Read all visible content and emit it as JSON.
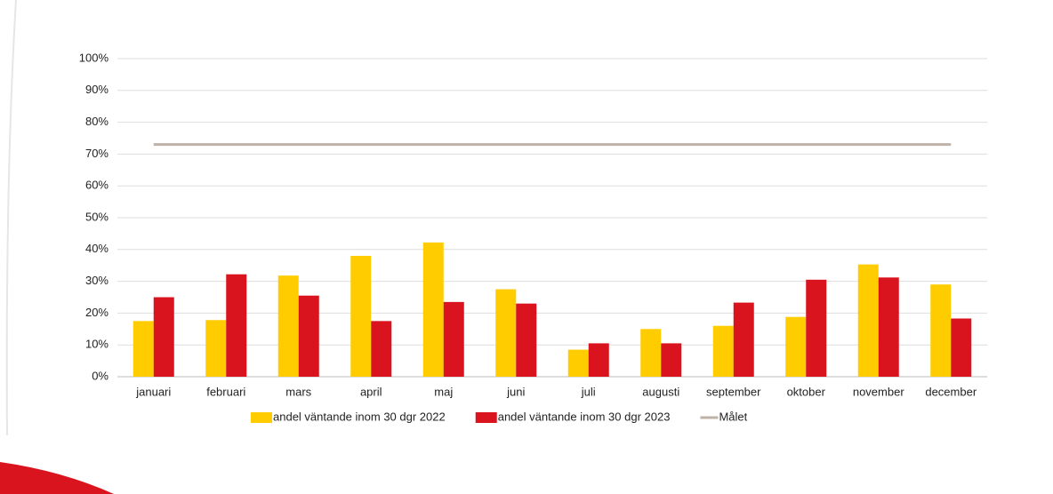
{
  "chart_data": {
    "type": "bar",
    "categories": [
      "januari",
      "februari",
      "mars",
      "april",
      "maj",
      "juni",
      "juli",
      "augusti",
      "september",
      "oktober",
      "november",
      "december"
    ],
    "series": [
      {
        "name": "andel väntande inom 30 dgr 2022",
        "color": "#ffcc00",
        "values": [
          17.5,
          17.8,
          31.8,
          38,
          42.2,
          27.5,
          8.5,
          15,
          16,
          18.8,
          35.3,
          29
        ]
      },
      {
        "name": "andel väntande inom 30 dgr 2023",
        "color": "#d9141e",
        "values": [
          25,
          32.2,
          25.5,
          17.5,
          23.5,
          23,
          10.5,
          10.5,
          23.3,
          30.5,
          31.2,
          18.3
        ]
      },
      {
        "name": "Målet",
        "color": "#bfb3a8",
        "type": "line",
        "values": [
          73,
          73,
          73,
          73,
          73,
          73,
          73,
          73,
          73,
          73,
          73,
          73
        ]
      }
    ],
    "ylim": [
      0,
      100
    ],
    "yticks": [
      {
        "value": 0,
        "label": "0%"
      },
      {
        "value": 10,
        "label": "10%"
      },
      {
        "value": 20,
        "label": "20%"
      },
      {
        "value": 30,
        "label": "30%"
      },
      {
        "value": 40,
        "label": "40%"
      },
      {
        "value": 50,
        "label": "50%"
      },
      {
        "value": 60,
        "label": "60%"
      },
      {
        "value": 70,
        "label": "70%"
      },
      {
        "value": 80,
        "label": "80%"
      },
      {
        "value": 90,
        "label": "90%"
      },
      {
        "value": 100,
        "label": "100%"
      }
    ],
    "grid": true,
    "legend": "bottom"
  }
}
